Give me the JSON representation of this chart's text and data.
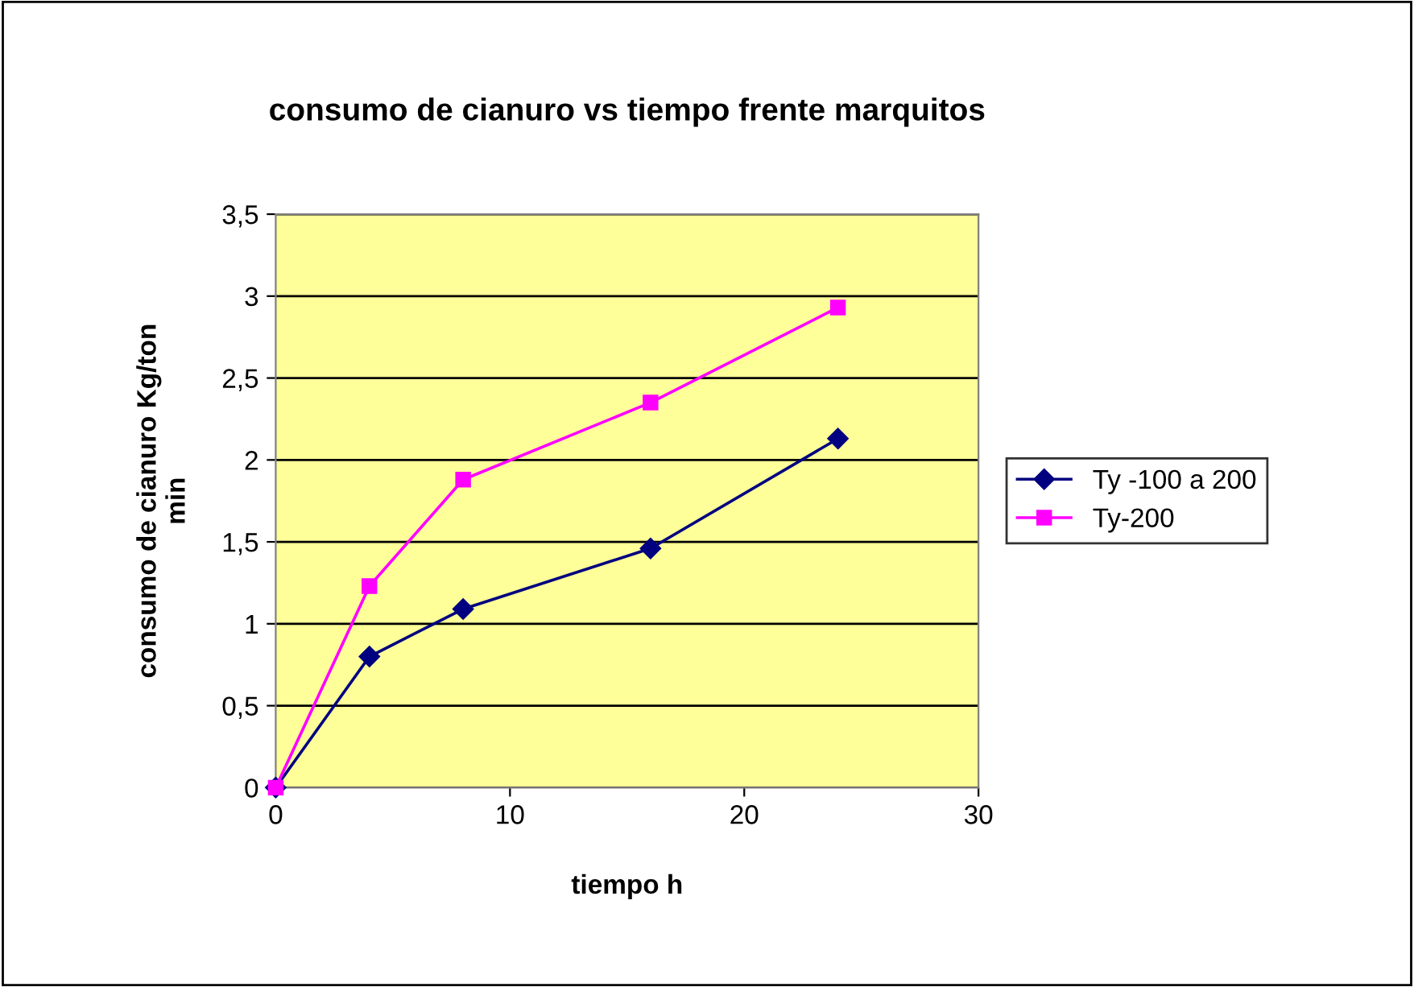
{
  "chart_data": {
    "type": "line",
    "title": "consumo de cianuro vs tiempo frente marquitos",
    "xlabel": "tiempo h",
    "ylabel": "consumo de cianuro Kg/ton\nmin",
    "x": [
      0,
      4,
      8,
      16,
      24
    ],
    "series": [
      {
        "name": "Ty -100 a 200",
        "color": "#000080",
        "marker": "diamond",
        "values": [
          0,
          0.8,
          1.09,
          1.46,
          2.13
        ]
      },
      {
        "name": "Ty-200",
        "color": "#ff00ff",
        "marker": "square",
        "values": [
          0,
          1.23,
          1.88,
          2.35,
          2.93
        ]
      }
    ],
    "xlim": [
      0,
      30
    ],
    "xticks": [
      0,
      10,
      20,
      30
    ],
    "ylim": [
      0,
      3.5
    ],
    "yticks": [
      0,
      {
        "value": 0.5,
        "label": "0,5"
      },
      1,
      {
        "value": 1.5,
        "label": "1,5"
      },
      2,
      {
        "value": 2.5,
        "label": "2,5"
      },
      3,
      {
        "value": 3.5,
        "label": "3,5"
      }
    ],
    "grid": "y",
    "legend": "right",
    "line_style": "solid"
  }
}
